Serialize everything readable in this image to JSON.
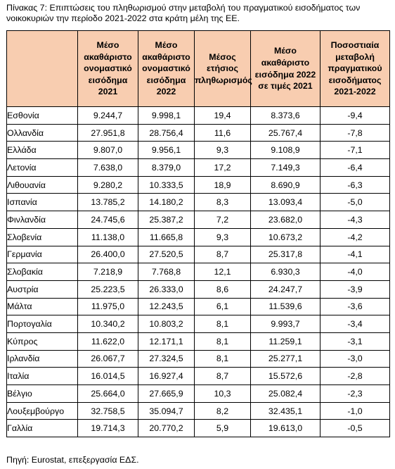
{
  "caption": "Πίνακας 7: Επιπτώσεις του πληθωρισμού στην μεταβολή του πραγματικού εισοδήματος των νοικοκυριών την περίοδο 2021-2022 στα κράτη μέλη της ΕΕ.",
  "table": {
    "headers": [
      "",
      "Μέσο ακαθάριστο ονομαστικό εισόδημα 2021",
      "Μέσο ακαθάριστο ονομαστικό εισόδημα 2022",
      "Μέσος ετήσιος πληθωρισμός",
      "Μέσο ακαθάριστο εισόδημα 2022 σε τιμές 2021",
      "Ποσοστιαία μεταβολή πραγματικού εισοδήματος 2021-2022"
    ],
    "rows": [
      [
        "Εσθονία",
        "9.244,7",
        "9.998,1",
        "19,4",
        "8.373,6",
        "-9,4"
      ],
      [
        "Ολλανδία",
        "27.951,8",
        "28.756,4",
        "11,6",
        "25.767,4",
        "-7,8"
      ],
      [
        "Ελλάδα",
        "9.807,0",
        "9.956,1",
        "9,3",
        "9.108,9",
        "-7,1"
      ],
      [
        "Λετονία",
        "7.638,0",
        "8.379,0",
        "17,2",
        "7.149,3",
        "-6,4"
      ],
      [
        "Λιθουανία",
        "9.280,2",
        "10.333,5",
        "18,9",
        "8.690,9",
        "-6,3"
      ],
      [
        "Ισπανία",
        "13.785,2",
        "14.180,2",
        "8,3",
        "13.093,4",
        "-5,0"
      ],
      [
        "Φινλανδία",
        "24.745,6",
        "25.387,2",
        "7,2",
        "23.682,0",
        "-4,3"
      ],
      [
        "Σλοβενία",
        "11.138,0",
        "11.665,8",
        "9,3",
        "10.673,2",
        "-4,2"
      ],
      [
        "Γερμανία",
        "26.400,0",
        "27.520,5",
        "8,7",
        "25.317,8",
        "-4,1"
      ],
      [
        "Σλοβακία",
        "7.218,9",
        "7.768,8",
        "12,1",
        "6.930,3",
        "-4,0"
      ],
      [
        "Αυστρία",
        "25.223,5",
        "26.333,0",
        "8,6",
        "24.247,7",
        "-3,9"
      ],
      [
        "Μάλτα",
        "11.975,0",
        "12.243,5",
        "6,1",
        "11.539,6",
        "-3,6"
      ],
      [
        "Πορτογαλία",
        "10.340,2",
        "10.803,2",
        "8,1",
        "9.993,7",
        "-3,4"
      ],
      [
        "Κύπρος",
        "11.622,0",
        "12.171,1",
        "8,1",
        "11.259,1",
        "-3,1"
      ],
      [
        "Ιρλανδία",
        "26.067,7",
        "27.324,5",
        "8,1",
        "25.277,1",
        "-3,0"
      ],
      [
        "Ιταλία",
        "16.014,5",
        "16.927,4",
        "8,7",
        "15.572,6",
        "-2,8"
      ],
      [
        "Βέλγιο",
        "25.664,0",
        "27.665,9",
        "10,3",
        "25.082,4",
        "-2,3"
      ],
      [
        "Λουξεμβούργο",
        "32.758,5",
        "35.094,7",
        "8,2",
        "32.435,1",
        "-1,0"
      ],
      [
        "Γαλλία",
        "19.714,3",
        "20.770,2",
        "5,9",
        "19.613,0",
        "-0,5"
      ]
    ]
  },
  "source": "Πηγή: Eurostat, επεξεργασία ΕΔΣ.",
  "colors": {
    "header_bg": "#f8cdb0",
    "border": "#000000"
  }
}
